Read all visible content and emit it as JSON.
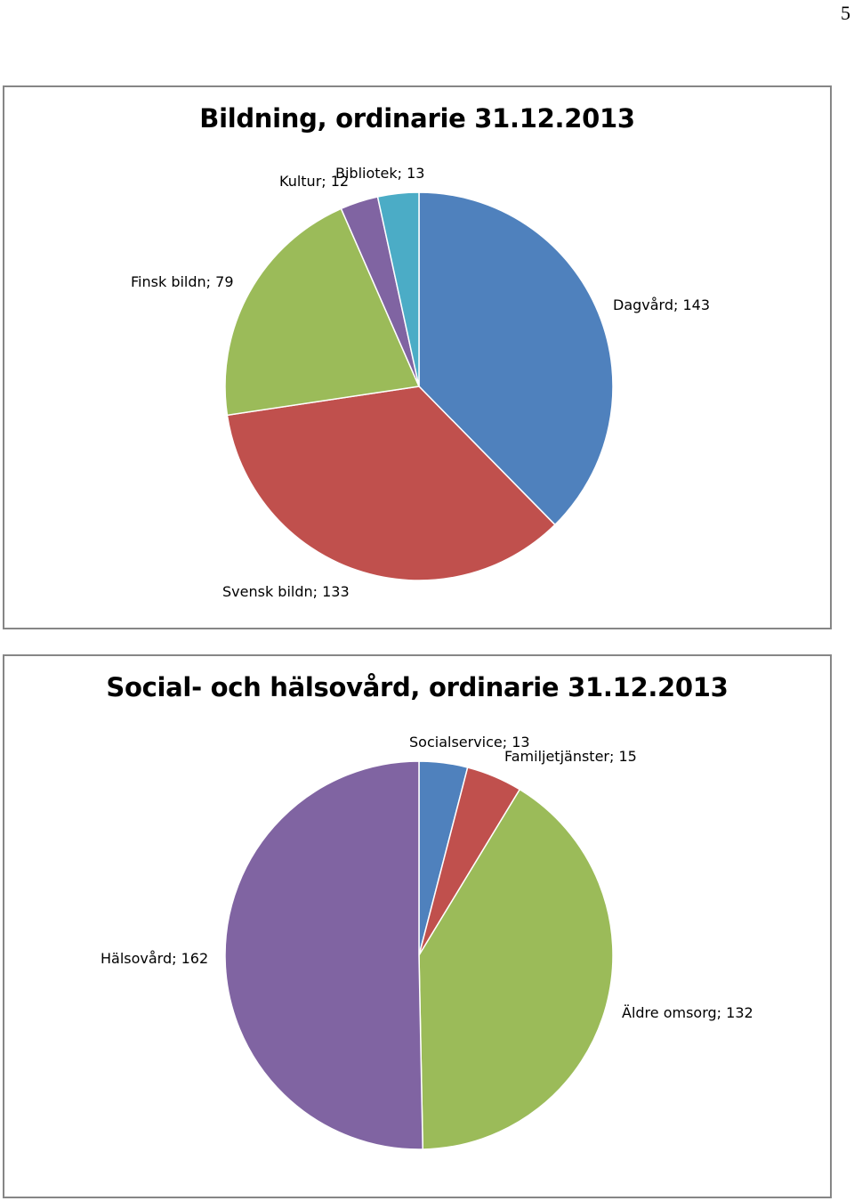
{
  "page": {
    "number": "5"
  },
  "chart_data": [
    {
      "type": "pie",
      "title": "Bildning, ordinarie 31.12.2013",
      "categories": [
        "Dagvård",
        "Svensk bildn",
        "Finsk bildn",
        "Kultur",
        "Bibliotek"
      ],
      "values": [
        143,
        133,
        79,
        12,
        13
      ],
      "labels": [
        "Dagvård; 143",
        "Svensk bildn; 133",
        "Finsk bildn; 79",
        "Kultur; 12",
        "Bibliotek; 13"
      ],
      "colors": [
        "#4F81BD",
        "#C0504D",
        "#9BBB59",
        "#8064A2",
        "#4BACC6"
      ],
      "start": "12 o'clock, clockwise",
      "legend": "none (data labels)"
    },
    {
      "type": "pie",
      "title": "Social- och hälsovård, ordinarie 31.12.2013",
      "categories": [
        "Socialservice",
        "Familjetjänster",
        "Äldre omsorg",
        "Hälsovård"
      ],
      "values": [
        13,
        15,
        132,
        162
      ],
      "labels": [
        "Socialservice; 13",
        "Familjetjänster; 15",
        "Äldre omsorg; 132",
        "Hälsovård; 162"
      ],
      "colors": [
        "#4F81BD",
        "#C0504D",
        "#9BBB59",
        "#8064A2"
      ],
      "start": "12 o'clock, clockwise",
      "legend": "none (data labels)"
    }
  ]
}
